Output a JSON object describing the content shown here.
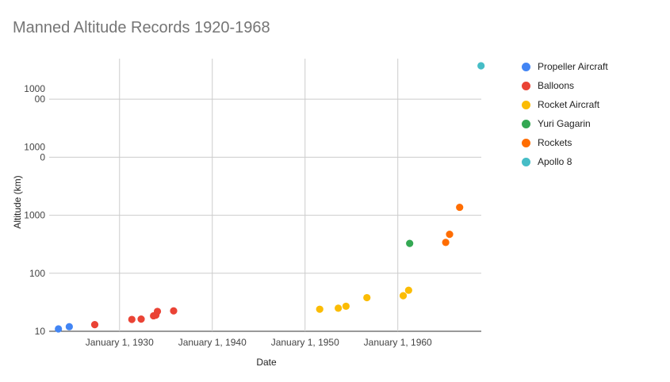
{
  "chart_data": {
    "type": "scatter",
    "title": "Manned Altitude Records 1920-1968",
    "xlabel": "Date",
    "ylabel": "Altitude (km)",
    "x_scale": "time",
    "x_range": [
      "1922-06-01",
      "1968-12-31"
    ],
    "x_ticks": [
      {
        "date": "1930-01-01",
        "label": "January 1, 1930"
      },
      {
        "date": "1940-01-01",
        "label": "January 1, 1940"
      },
      {
        "date": "1950-01-01",
        "label": "January 1, 1950"
      },
      {
        "date": "1960-01-01",
        "label": "January 1, 1960"
      }
    ],
    "y_scale": "log",
    "y_range": [
      10,
      500000
    ],
    "y_ticks": [
      {
        "value": 10,
        "lines": [
          "10"
        ]
      },
      {
        "value": 100,
        "lines": [
          "100"
        ]
      },
      {
        "value": 1000,
        "lines": [
          "1000"
        ]
      },
      {
        "value": 10000,
        "lines": [
          "1000",
          "0"
        ]
      },
      {
        "value": 100000,
        "lines": [
          "1000",
          "00"
        ]
      }
    ],
    "grid": true,
    "legend_position": "right",
    "series": [
      {
        "name": "Propeller Aircraft",
        "color": "#4285f4",
        "points": [
          {
            "x": "1923-06-01",
            "y": 11
          },
          {
            "x": "1924-08-01",
            "y": 12
          }
        ]
      },
      {
        "name": "Balloons",
        "color": "#ea4335",
        "points": [
          {
            "x": "1927-05-01",
            "y": 13
          },
          {
            "x": "1931-05-01",
            "y": 16
          },
          {
            "x": "1932-05-01",
            "y": 16.2
          },
          {
            "x": "1933-09-01",
            "y": 18.5
          },
          {
            "x": "1933-12-01",
            "y": 19
          },
          {
            "x": "1934-02-01",
            "y": 22
          },
          {
            "x": "1935-11-01",
            "y": 22.5
          }
        ]
      },
      {
        "name": "Rocket Aircraft",
        "color": "#fbbc04",
        "points": [
          {
            "x": "1951-08-01",
            "y": 24
          },
          {
            "x": "1953-08-01",
            "y": 25
          },
          {
            "x": "1954-06-01",
            "y": 27
          },
          {
            "x": "1956-09-01",
            "y": 38
          },
          {
            "x": "1960-08-01",
            "y": 41
          },
          {
            "x": "1961-03-01",
            "y": 51
          }
        ]
      },
      {
        "name": "Yuri Gagarin",
        "color": "#34a853",
        "points": [
          {
            "x": "1961-04-12",
            "y": 327
          }
        ]
      },
      {
        "name": "Rockets",
        "color": "#ff6d01",
        "points": [
          {
            "x": "1965-03-01",
            "y": 340
          },
          {
            "x": "1965-08-01",
            "y": 470
          },
          {
            "x": "1966-09-01",
            "y": 1370
          }
        ]
      },
      {
        "name": "Apollo 8",
        "color": "#46bdc6",
        "points": [
          {
            "x": "1968-12-21",
            "y": 377000
          }
        ]
      }
    ]
  }
}
